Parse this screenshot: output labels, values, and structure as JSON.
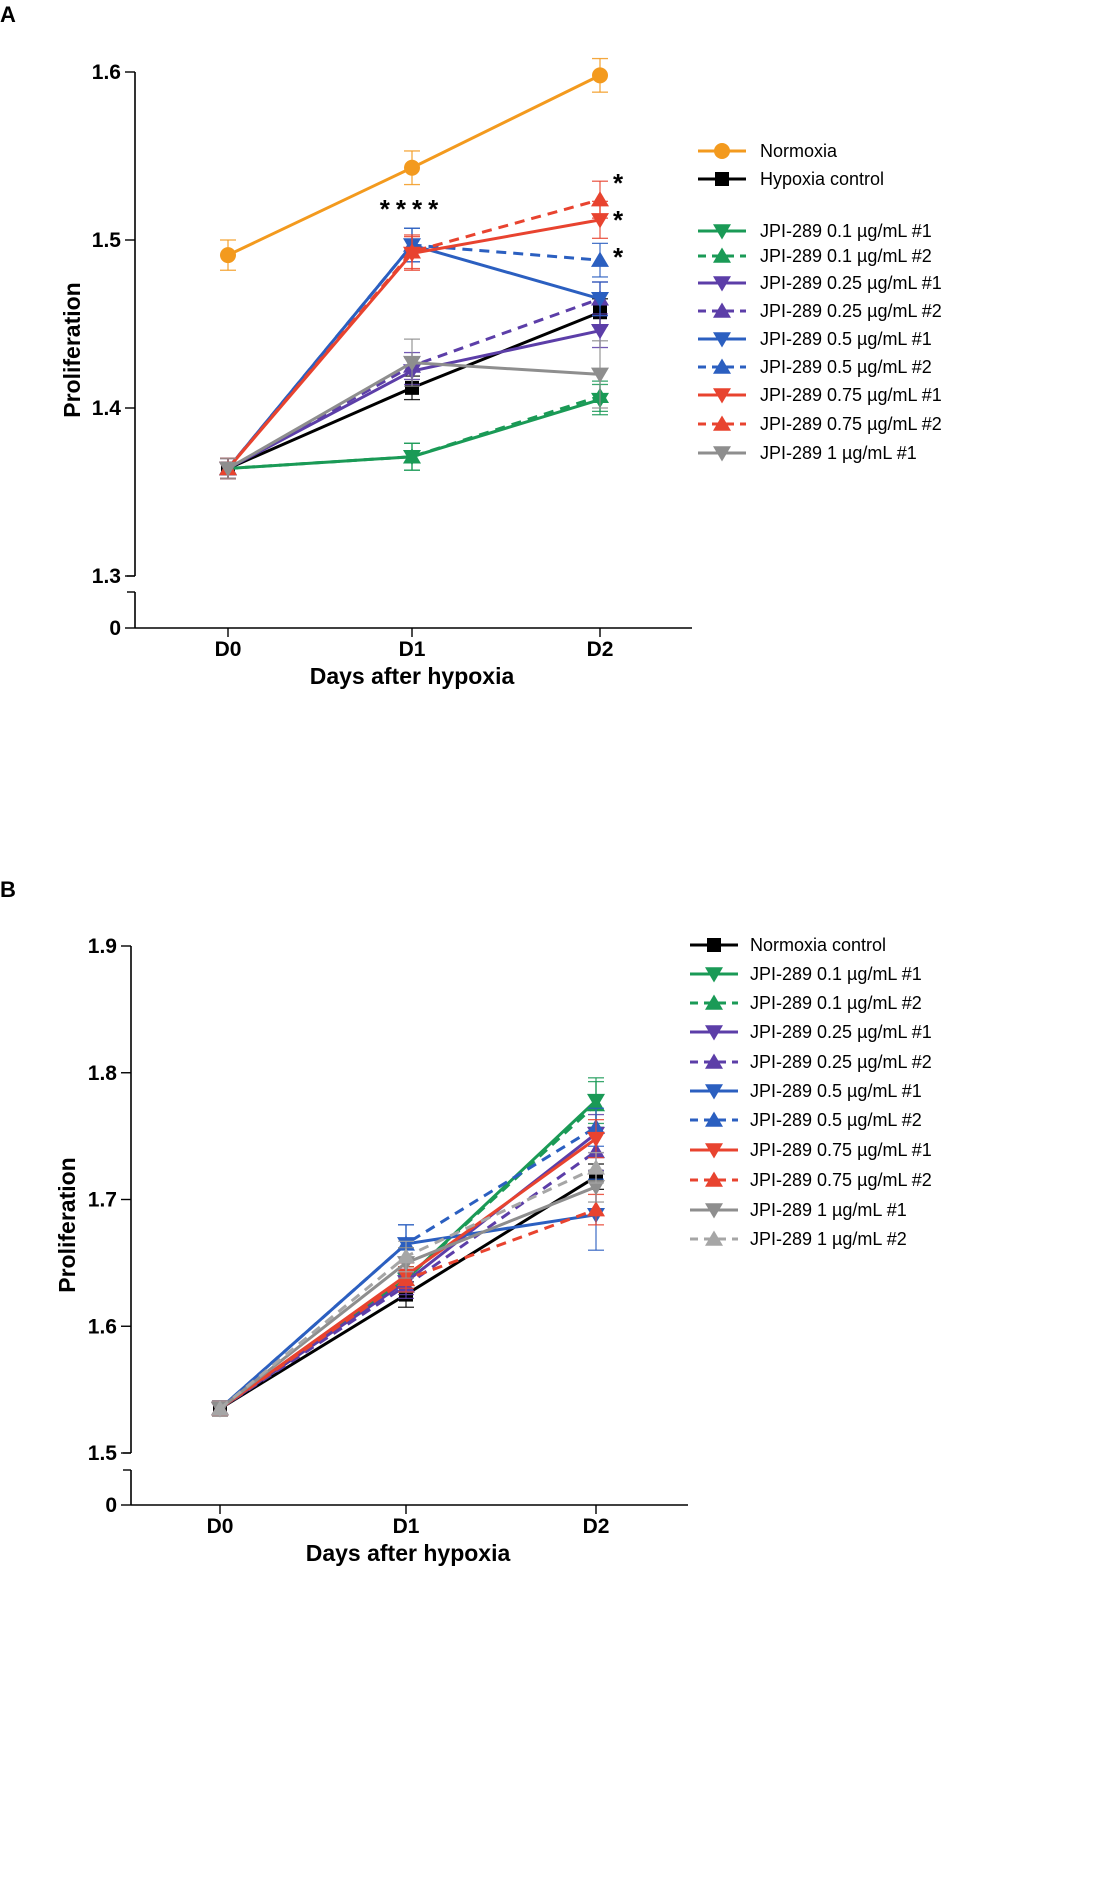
{
  "chart_data": [
    {
      "id": "A",
      "type": "line",
      "panel_label": "A",
      "xlabel": "Days after hypoxia",
      "ylabel": "Proliferation",
      "categories": [
        "D0",
        "D1",
        "D2"
      ],
      "yticks": [
        "1.3",
        "1.4",
        "1.5",
        "1.6"
      ],
      "y_zero_label": "0",
      "ylim": [
        1.3,
        1.6
      ],
      "annotations": {
        "d1": "****",
        "stars": [
          "*",
          "*",
          "*"
        ]
      },
      "series": [
        {
          "name": "Normoxia",
          "color": "#f39a1e",
          "dash": false,
          "marker": "circle",
          "values": [
            1.491,
            1.543,
            1.598
          ],
          "err": [
            0.009,
            0.01,
            0.01
          ]
        },
        {
          "name": "Hypoxia control",
          "color": "#000000",
          "dash": false,
          "marker": "square",
          "values": [
            1.364,
            1.412,
            1.457
          ],
          "err": [
            0.006,
            0.007,
            0.008
          ]
        },
        {
          "name": "JPI-289 0.1 µg/mL #1",
          "color": "#1a9a56",
          "dash": false,
          "marker": "tri-down",
          "values": [
            1.364,
            1.371,
            1.405
          ],
          "err": [
            0.006,
            0.008,
            0.009
          ]
        },
        {
          "name": "JPI-289 0.1 µg/mL #2",
          "color": "#1a9a56",
          "dash": true,
          "marker": "tri-up",
          "values": [
            1.364,
            1.371,
            1.407
          ],
          "err": [
            0.006,
            0.008,
            0.009
          ]
        },
        {
          "name": "JPI-289 0.25 µg/mL #1",
          "color": "#5c3ea8",
          "dash": false,
          "marker": "tri-down",
          "values": [
            1.364,
            1.422,
            1.446
          ],
          "err": [
            0.006,
            0.008,
            0.01
          ]
        },
        {
          "name": "JPI-289 0.25 µg/mL #2",
          "color": "#5c3ea8",
          "dash": true,
          "marker": "tri-up",
          "values": [
            1.364,
            1.425,
            1.465
          ],
          "err": [
            0.006,
            0.008,
            0.01
          ]
        },
        {
          "name": "JPI-289 0.5 µg/mL #1",
          "color": "#2b5fc0",
          "dash": false,
          "marker": "tri-down",
          "values": [
            1.364,
            1.497,
            1.465
          ],
          "err": [
            0.006,
            0.01,
            0.01
          ]
        },
        {
          "name": "JPI-289 0.5 µg/mL #2",
          "color": "#2b5fc0",
          "dash": true,
          "marker": "tri-up",
          "values": [
            1.364,
            1.497,
            1.488
          ],
          "err": [
            0.006,
            0.01,
            0.01
          ]
        },
        {
          "name": "JPI-289 0.75 µg/mL #1",
          "color": "#e8432f",
          "dash": false,
          "marker": "tri-down",
          "values": [
            1.364,
            1.492,
            1.512
          ],
          "err": [
            0.006,
            0.01,
            0.011
          ]
        },
        {
          "name": "JPI-289 0.75 µg/mL #2",
          "color": "#e8432f",
          "dash": true,
          "marker": "tri-up",
          "values": [
            1.364,
            1.493,
            1.524
          ],
          "err": [
            0.006,
            0.01,
            0.011
          ]
        },
        {
          "name": "JPI-289 1 µg/mL #1",
          "color": "#8e8e8e",
          "dash": false,
          "marker": "tri-down",
          "values": [
            1.364,
            1.427,
            1.42
          ],
          "err": [
            0.006,
            0.014,
            0.02
          ]
        }
      ]
    },
    {
      "id": "B",
      "type": "line",
      "panel_label": "B",
      "xlabel": "Days after hypoxia",
      "ylabel": "Proliferation",
      "categories": [
        "D0",
        "D1",
        "D2"
      ],
      "yticks": [
        "1.5",
        "1.6",
        "1.7",
        "1.8",
        "1.9"
      ],
      "y_zero_label": "0",
      "ylim": [
        1.5,
        1.9
      ],
      "series": [
        {
          "name": "Normoxia control",
          "color": "#000000",
          "dash": false,
          "marker": "square",
          "values": [
            1.535,
            1.625,
            1.718
          ],
          "err": [
            0.006,
            0.01,
            0.01
          ]
        },
        {
          "name": "JPI-289 0.1 µg/mL #1",
          "color": "#1a9a56",
          "dash": false,
          "marker": "tri-down",
          "values": [
            1.535,
            1.637,
            1.778
          ],
          "err": [
            0.006,
            0.01,
            0.018
          ]
        },
        {
          "name": "JPI-289 0.1 µg/mL #2",
          "color": "#1a9a56",
          "dash": true,
          "marker": "tri-up",
          "values": [
            1.535,
            1.637,
            1.775
          ],
          "err": [
            0.006,
            0.01,
            0.018
          ]
        },
        {
          "name": "JPI-289 0.25 µg/mL #1",
          "color": "#5c3ea8",
          "dash": false,
          "marker": "tri-down",
          "values": [
            1.535,
            1.635,
            1.752
          ],
          "err": [
            0.006,
            0.01,
            0.015
          ]
        },
        {
          "name": "JPI-289 0.25 µg/mL #2",
          "color": "#5c3ea8",
          "dash": true,
          "marker": "tri-up",
          "values": [
            1.535,
            1.632,
            1.738
          ],
          "err": [
            0.006,
            0.01,
            0.015
          ]
        },
        {
          "name": " JPI-289 0.5 µg/mL #1",
          "color": "#2b5fc0",
          "dash": false,
          "marker": "tri-down",
          "values": [
            1.535,
            1.665,
            1.688
          ],
          "err": [
            0.006,
            0.015,
            0.028
          ]
        },
        {
          "name": "JPI-289 0.5 µg/mL #2",
          "color": "#2b5fc0",
          "dash": true,
          "marker": "tri-up",
          "values": [
            1.535,
            1.665,
            1.757
          ],
          "err": [
            0.006,
            0.015,
            0.015
          ]
        },
        {
          "name": "JPI-289 0.75 µg/mL #1",
          "color": "#e8432f",
          "dash": false,
          "marker": "tri-down",
          "values": [
            1.535,
            1.64,
            1.748
          ],
          "err": [
            0.006,
            0.01,
            0.015
          ]
        },
        {
          "name": "JPI-289 0.75 µg/mL #2",
          "color": "#e8432f",
          "dash": true,
          "marker": "tri-up",
          "values": [
            1.535,
            1.637,
            1.692
          ],
          "err": [
            0.006,
            0.01,
            0.012
          ]
        },
        {
          "name": "JPI-289 1 µg/mL #1",
          "color": "#8e8e8e",
          "dash": false,
          "marker": "tri-down",
          "values": [
            1.535,
            1.65,
            1.71
          ],
          "err": [
            0.006,
            0.012,
            0.012
          ]
        },
        {
          "name": "JPI-289 1 µg/mL #2",
          "color": "#a6a6a6",
          "dash": true,
          "marker": "tri-up",
          "values": [
            1.535,
            1.655,
            1.725
          ],
          "err": [
            0.006,
            0.012,
            0.012
          ]
        }
      ]
    }
  ]
}
